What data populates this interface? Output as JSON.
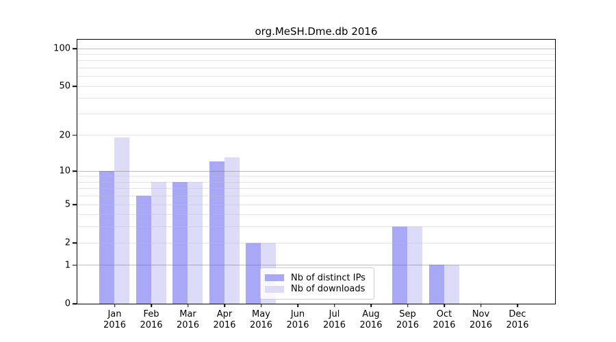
{
  "title": "org.MeSH.Dme.db 2016",
  "colors": {
    "bar_distinct_ips": "#a8a8f6",
    "bar_downloads": "#dcdcf8",
    "axis": "#000000",
    "background": "#ffffff"
  },
  "y_axis": {
    "scale": "log10(1+x)",
    "labeled_ticks": [
      100,
      50,
      20,
      10,
      5,
      2,
      1,
      0
    ],
    "dark_gridlines": [
      100,
      10,
      1
    ],
    "light_gridlines": [
      90,
      80,
      70,
      60,
      50,
      40,
      30,
      20,
      9,
      8,
      7,
      6,
      5,
      4,
      3,
      2
    ]
  },
  "x_axis": {
    "year": "2016",
    "months": [
      "Jan",
      "Feb",
      "Mar",
      "Apr",
      "May",
      "Jun",
      "Jul",
      "Aug",
      "Sep",
      "Oct",
      "Nov",
      "Dec"
    ]
  },
  "legend": {
    "items": [
      {
        "label": "Nb of distinct IPs",
        "color": "#a8a8f6"
      },
      {
        "label": "Nb of downloads",
        "color": "#dcdcf8"
      }
    ]
  },
  "chart_data": {
    "type": "bar",
    "title": "org.MeSH.Dme.db 2016",
    "categories": [
      "Jan 2016",
      "Feb 2016",
      "Mar 2016",
      "Apr 2016",
      "May 2016",
      "Jun 2016",
      "Jul 2016",
      "Aug 2016",
      "Sep 2016",
      "Oct 2016",
      "Nov 2016",
      "Dec 2016"
    ],
    "series": [
      {
        "name": "Nb of distinct IPs",
        "values": [
          10,
          6,
          8,
          12,
          2,
          0,
          0,
          0,
          3,
          1,
          0,
          0
        ]
      },
      {
        "name": "Nb of downloads",
        "values": [
          19,
          8,
          8,
          13,
          2,
          0,
          0,
          0,
          3,
          1,
          0,
          0
        ]
      }
    ],
    "xlabel": "",
    "ylabel": "",
    "yscale": "log10(1+x)",
    "ylim": [
      0,
      100
    ],
    "ytick_labels": [
      "0",
      "1",
      "2",
      "5",
      "10",
      "20",
      "50",
      "100"
    ],
    "grid": true,
    "legend_position": "inside lower center-left"
  }
}
